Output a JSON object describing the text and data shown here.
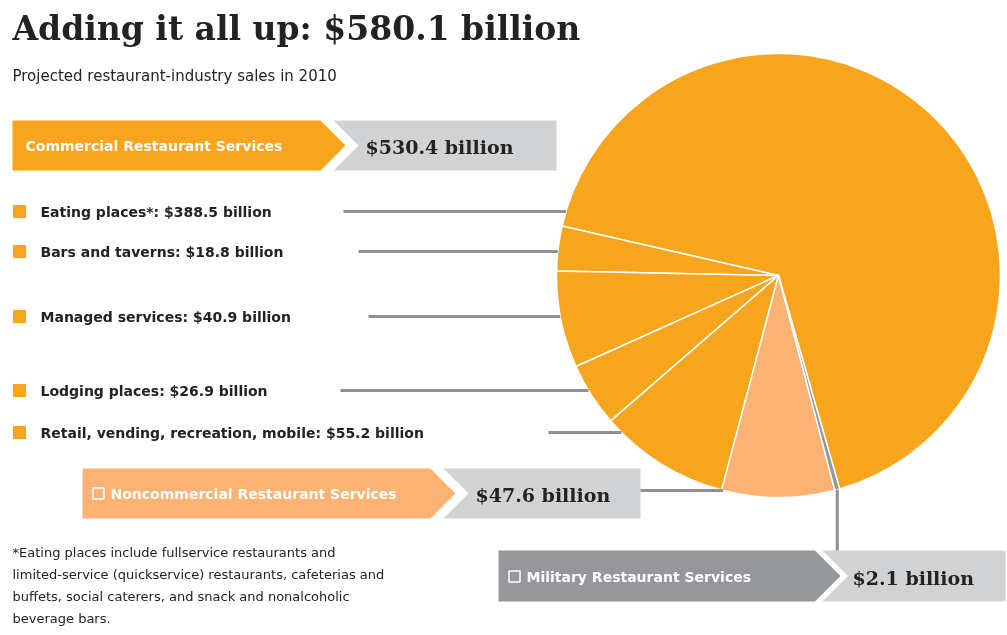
{
  "chart_data": {
    "type": "pie",
    "title": "Adding it all up: $580.1 billion",
    "subtitle": "Projected restaurant-industry sales in 2010",
    "categories": [
      "Eating places*",
      "Bars and taverns",
      "Managed services",
      "Lodging places",
      "Retail, vending, recreation, mobile",
      "Noncommercial Restaurant Services",
      "Military Restaurant Services"
    ],
    "values": [
      388.5,
      18.8,
      40.9,
      26.9,
      55.2,
      47.6,
      2.1
    ],
    "value_labels": [
      "$388.5 billion",
      "$18.8 billion",
      "$40.9 billion",
      "$26.9 billion",
      "$55.2 billion",
      "$47.6 billion",
      "$2.1 billion"
    ],
    "legend": "left",
    "colors": [
      "#f7a51d",
      "#f7a51d",
      "#f7a51d",
      "#f7a51d",
      "#f7a51d",
      "#fbb374",
      "#96979a"
    ],
    "annotations": [
      "Commercial Restaurant Services",
      "$530.4 billion",
      "*Eating places include fullservice restaurants and limited-service (quickservice) restaurants, cafeterias and buffets, social caterers, and snack and nonalcoholic beverage bars."
    ]
  }
}
